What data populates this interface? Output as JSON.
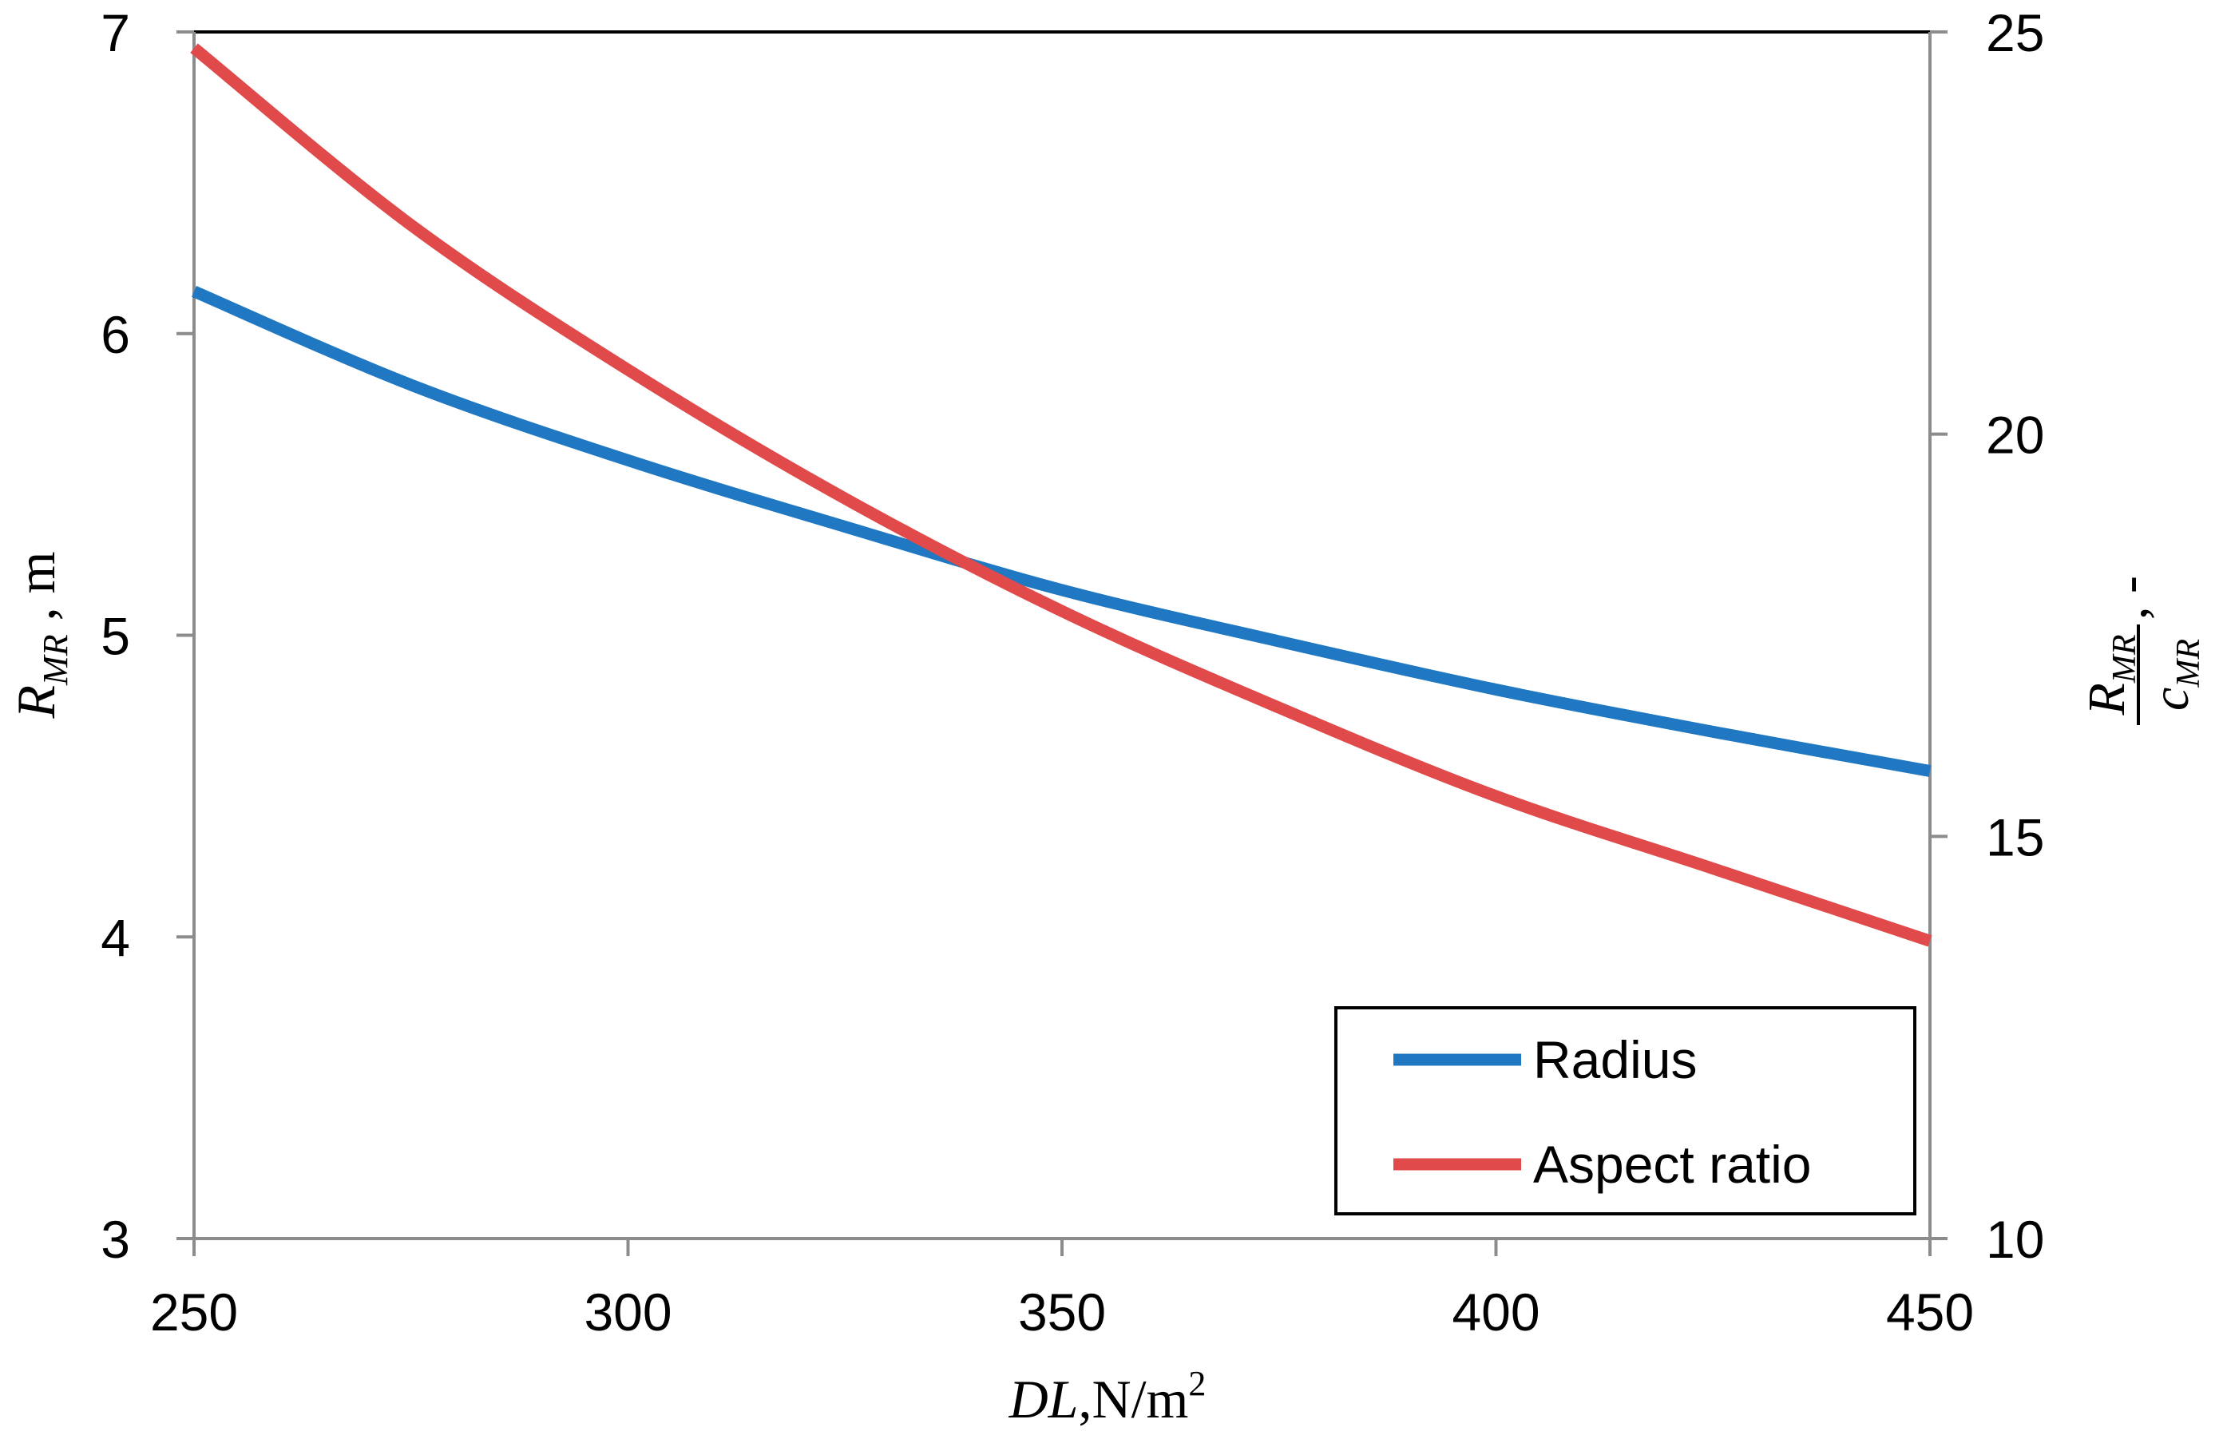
{
  "chart_data": {
    "type": "line",
    "title": "",
    "xlabel": "DL,N/m²",
    "xlabel_parts": {
      "var": "DL",
      "comma": ",",
      "unit": "N/m",
      "sup": "2"
    },
    "ylabel_left": "R_MR , m",
    "ylabel_left_parts": {
      "var": "R",
      "sub": "MR",
      "unit": " , m"
    },
    "ylabel_right": "R_MR / c_MR , -",
    "ylabel_right_parts": {
      "num": "R",
      "num_sub": "MR",
      "den": "c",
      "den_sub": "MR",
      "unit": ", -"
    },
    "xlim": [
      250,
      450
    ],
    "ylim_left": [
      3,
      7
    ],
    "ylim_right": [
      10,
      25
    ],
    "x_ticks": [
      250,
      300,
      350,
      400,
      450
    ],
    "y_left_ticks": [
      3,
      4,
      5,
      6,
      7
    ],
    "y_right_ticks": [
      10,
      15,
      20,
      25
    ],
    "grid": false,
    "legend_position": "bottom-right",
    "series": [
      {
        "name": "Radius",
        "axis": "left",
        "color": "#1f78c1",
        "x": [
          250,
          275,
          300,
          325,
          350,
          375,
          400,
          425,
          450
        ],
        "values": [
          6.14,
          5.83,
          5.58,
          5.36,
          5.15,
          4.98,
          4.82,
          4.68,
          4.55
        ]
      },
      {
        "name": "Aspect ratio",
        "axis": "right",
        "color": "#e04a4a",
        "x": [
          250,
          275,
          300,
          325,
          350,
          375,
          400,
          425,
          450
        ],
        "values": [
          24.8,
          22.6,
          20.8,
          19.2,
          17.8,
          16.6,
          15.5,
          14.6,
          13.7
        ]
      }
    ]
  }
}
